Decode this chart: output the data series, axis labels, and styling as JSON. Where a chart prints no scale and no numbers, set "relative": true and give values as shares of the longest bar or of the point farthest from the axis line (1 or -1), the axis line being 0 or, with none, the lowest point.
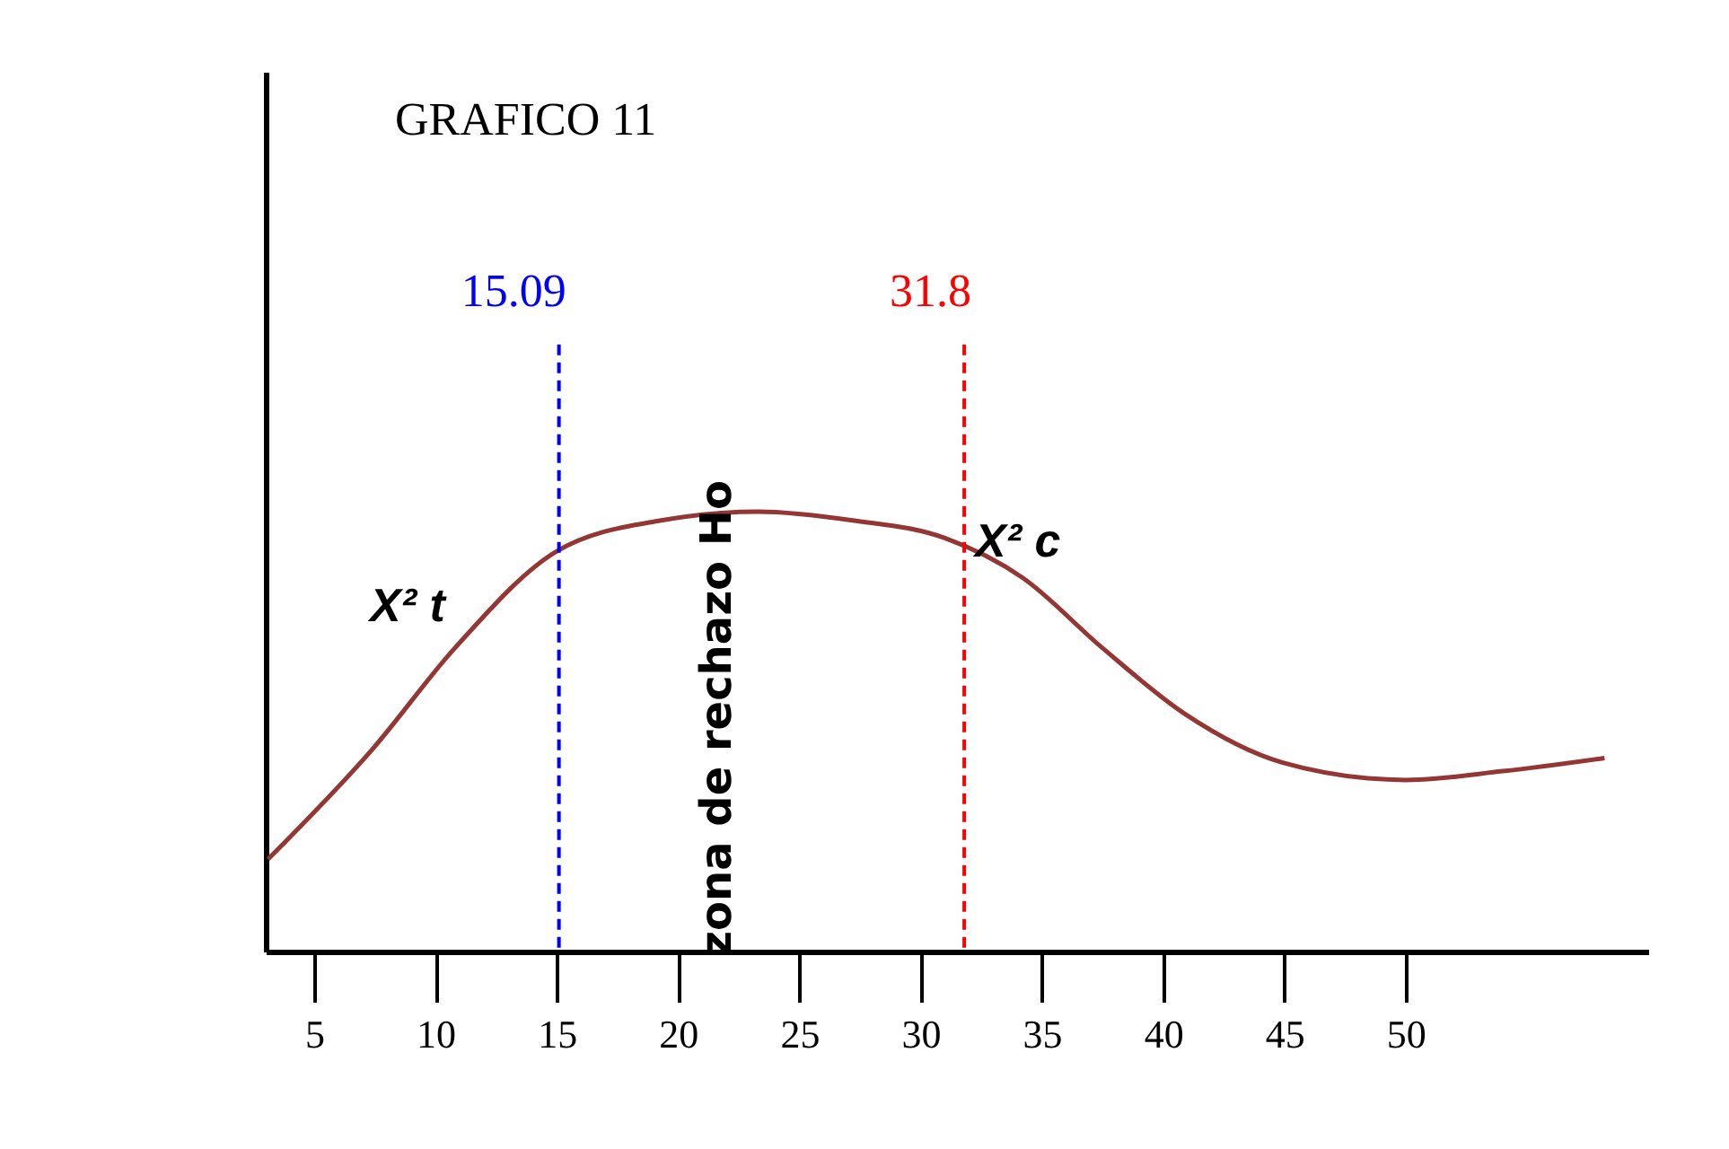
{
  "chart_data": {
    "type": "line",
    "title": "GRAFICO 11",
    "relative": true,
    "x": [
      3.1,
      7.4,
      10.8,
      15,
      19.3,
      23.3,
      27.2,
      31,
      34.2,
      37.5,
      40.9,
      44.9,
      50,
      54,
      58.2
    ],
    "series": [
      {
        "color": "#943634",
        "values": [
          0.21,
          0.46,
          0.69,
          0.91,
          0.98,
          1,
          0.98,
          0.94,
          0.85,
          0.69,
          0.54,
          0.43,
          0.39,
          0.41,
          0.44
        ]
      }
    ],
    "xlim": [
      3,
      60
    ],
    "xticks": [
      5,
      10,
      15,
      20,
      25,
      30,
      35,
      40,
      45,
      50
    ],
    "ref_lines": [
      {
        "axis": "x",
        "value": 15.09,
        "label": "15.09",
        "color": "#0000ff",
        "line_style": "dashed"
      },
      {
        "axis": "x",
        "value": 31.8,
        "label": "31.8",
        "color": "#ff0000",
        "line_style": "dashed"
      }
    ],
    "annotations": [
      "X² t",
      "X² c",
      "zona de rechazo Ho"
    ],
    "grid": false,
    "marker": "none",
    "line_style": "solid"
  }
}
